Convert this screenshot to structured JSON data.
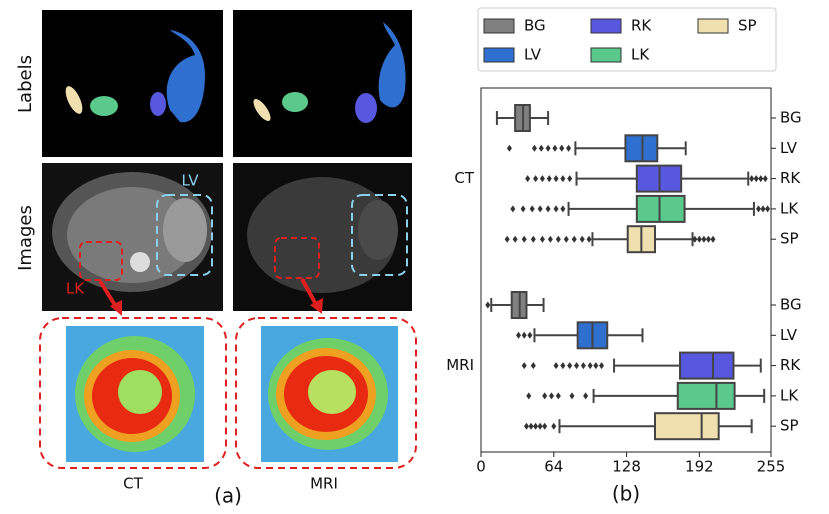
{
  "panel_a": {
    "row_labels": [
      "Labels",
      "Images"
    ],
    "annotations": [
      "LV",
      "LK"
    ],
    "captions": [
      "CT",
      "MRI"
    ],
    "tag": "(a)"
  },
  "chart_data": {
    "type": "box",
    "tag": "(b)",
    "series": [
      {
        "name": "BG",
        "color": "#808080"
      },
      {
        "name": "LV",
        "color": "#2f6fd0"
      },
      {
        "name": "RK",
        "color": "#5757e0"
      },
      {
        "name": "LK",
        "color": "#5cc98c"
      },
      {
        "name": "SP",
        "color": "#f0e0b0"
      }
    ],
    "groups": [
      {
        "name": "CT",
        "boxes": [
          {
            "name": "BG",
            "low": 14,
            "q1": 30,
            "median": 37,
            "q3": 43,
            "high": 59,
            "outliers": []
          },
          {
            "name": "LV",
            "low": 83,
            "q1": 127,
            "median": 142,
            "q3": 155,
            "high": 180,
            "outliers": [
              25,
              47,
              53,
              59,
              65,
              71,
              77
            ]
          },
          {
            "name": "RK",
            "low": 84,
            "q1": 137,
            "median": 157,
            "q3": 176,
            "high": 235,
            "outliers": [
              41,
              48,
              54,
              60,
              66,
              72,
              78,
              238,
              242,
              246,
              250
            ]
          },
          {
            "name": "LK",
            "low": 77,
            "q1": 137,
            "median": 157,
            "q3": 179,
            "high": 240,
            "outliers": [
              28,
              37,
              45,
              52,
              59,
              66,
              72,
              244,
              248,
              252
            ]
          },
          {
            "name": "SP",
            "low": 98,
            "q1": 129,
            "median": 141,
            "q3": 153,
            "high": 186,
            "outliers": [
              23,
              30,
              38,
              46,
              54,
              61,
              68,
              75,
              82,
              89,
              95,
              188,
              192,
              196,
              200,
              204
            ]
          }
        ]
      },
      {
        "name": "MRI",
        "boxes": [
          {
            "name": "BG",
            "low": 9,
            "q1": 27,
            "median": 34,
            "q3": 40,
            "high": 55,
            "outliers": [
              6
            ]
          },
          {
            "name": "LV",
            "low": 47,
            "q1": 85,
            "median": 98,
            "q3": 111,
            "high": 142,
            "outliers": [
              33,
              38,
              43
            ]
          },
          {
            "name": "RK",
            "low": 117,
            "q1": 175,
            "median": 204,
            "q3": 222,
            "high": 246,
            "outliers": [
              38,
              46,
              66,
              72,
              78,
              84,
              90,
              96,
              101,
              106
            ]
          },
          {
            "name": "LK",
            "low": 99,
            "q1": 173,
            "median": 207,
            "q3": 223,
            "high": 249,
            "outliers": [
              42,
              56,
              62,
              68,
              80,
              92
            ]
          },
          {
            "name": "SP",
            "low": 69,
            "q1": 153,
            "median": 194,
            "q3": 209,
            "high": 238,
            "outliers": [
              40,
              44,
              48,
              52,
              56,
              64
            ]
          }
        ]
      }
    ],
    "xlim": [
      0,
      255
    ],
    "xticks": [
      0,
      64,
      128,
      192,
      255
    ]
  }
}
